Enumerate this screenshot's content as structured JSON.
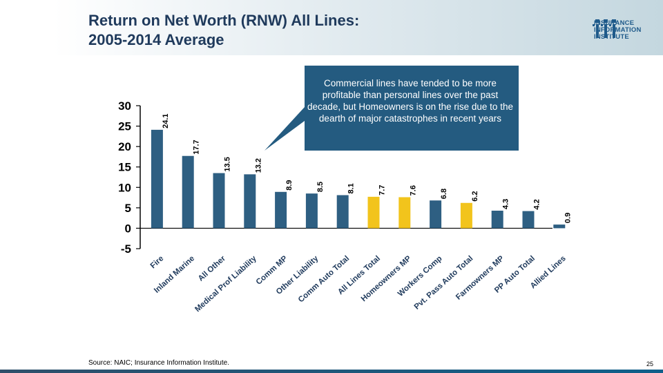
{
  "header": {
    "title_line1": "Return on Net Worth (RNW) All Lines:",
    "title_line2": "2005-2014 Average"
  },
  "logo": {
    "line1": "INSURANCE",
    "line2": "INFORMATION",
    "line3": "INSTITUTE"
  },
  "callout": {
    "text": "Commercial lines have tended to be more profitable than personal lines over the past decade, but Homeowners is on the rise due to the dearth of major catastrophes in recent years"
  },
  "footer": {
    "source": "Source: NAIC; Insurance Information Institute.",
    "page": "25"
  },
  "colors": {
    "bar": "#2e5f82",
    "highlight": "#f2c41c",
    "callout": "#245b80",
    "title": "#1f3a5c"
  },
  "chart_data": {
    "type": "bar",
    "title": "Return on Net Worth (RNW) All Lines: 2005-2014 Average",
    "xlabel": "",
    "ylabel": "",
    "ylim": [
      -5,
      30
    ],
    "yticks": [
      "-5",
      "0",
      "5",
      "10",
      "15",
      "20",
      "25",
      "30"
    ],
    "categories": [
      "Fire",
      "Inland Marine",
      "All Other",
      "Medical Prof Liability",
      "Comm MP",
      "Other Liability",
      "Comm Auto Total",
      "All Lines Total",
      "Homeowners MP",
      "Workers Comp",
      "Pvt. Pass Auto Total",
      "Farmowners MP",
      "PP Auto Total",
      "Allied Lines"
    ],
    "values": [
      24.1,
      17.7,
      13.5,
      13.2,
      8.9,
      8.5,
      8.1,
      7.7,
      7.6,
      6.8,
      6.2,
      4.3,
      4.2,
      0.9
    ],
    "value_labels": [
      "24.1",
      "17.7",
      "13.5",
      "13.2",
      "8.9",
      "8.5",
      "8.1",
      "7.7",
      "7.6",
      "6.8",
      "6.2",
      "4.3",
      "4.2",
      "0.9"
    ],
    "highlighted": [
      "All Lines Total",
      "Homeowners MP",
      "Pvt. Pass Auto Total"
    ],
    "legend": "none",
    "grid": false
  }
}
